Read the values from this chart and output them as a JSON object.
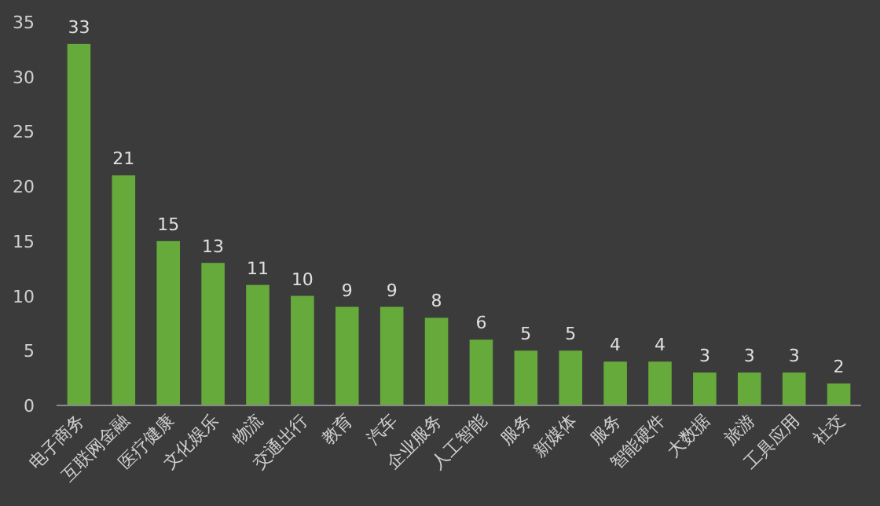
{
  "chart_data": {
    "type": "bar",
    "categories": [
      "电子商务",
      "互联网金融",
      "医疗健康",
      "文化娱乐",
      "物流",
      "交通出行",
      "教育",
      "汽车",
      "企业服务",
      "人工智能",
      "服务",
      "新媒体",
      "服务",
      "智能硬件",
      "大数据",
      "旅游",
      "工具应用",
      "社交"
    ],
    "values": [
      33,
      21,
      15,
      13,
      11,
      10,
      9,
      9,
      8,
      6,
      5,
      5,
      4,
      4,
      3,
      3,
      3,
      2
    ],
    "color": "#66aa3c",
    "ylim": [
      0,
      35
    ],
    "yticks": [
      0,
      5,
      10,
      15,
      20,
      25,
      30,
      35
    ],
    "data_labels": true,
    "grid": false
  }
}
